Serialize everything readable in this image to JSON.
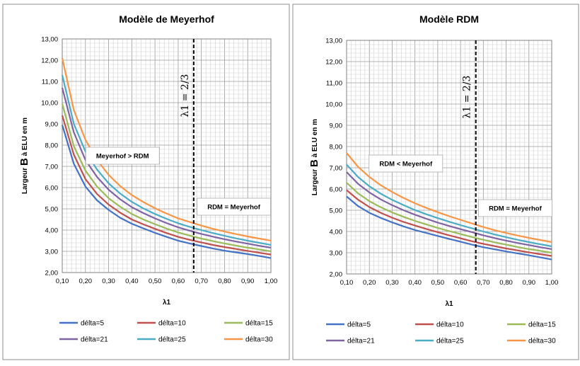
{
  "chart_data": [
    {
      "type": "line",
      "title": "Modèle de Meyerhof",
      "ylabel": "Largeur B à ELU en m",
      "ylabel_prefix": "Largeur ",
      "ylabel_big": "B",
      "ylabel_suffix": " à ELU en m",
      "xlabel": "λ1",
      "x_ticks": [
        "0,10",
        "0,20",
        "0,30",
        "0,40",
        "0,50",
        "0,60",
        "0,70",
        "0,80",
        "0,90",
        "1,00"
      ],
      "y_ticks": [
        "2,00",
        "3,00",
        "4,00",
        "5,00",
        "6,00",
        "7,00",
        "8,00",
        "9,00",
        "10,00",
        "11,00",
        "12,00",
        "13,00"
      ],
      "xlim": [
        0.1,
        1.0
      ],
      "ylim": [
        2,
        13
      ],
      "grid": true,
      "legend_position": "bottom",
      "marker_x": 0.667,
      "marker_label": "λ1 = 2/3",
      "annotations": [
        {
          "text": "Meyerhof > RDM",
          "x": 0.36,
          "y": 7.5
        },
        {
          "text": "RDM = Meyerhof",
          "x": 0.84,
          "y": 5.1
        }
      ],
      "x": [
        0.1,
        0.15,
        0.2,
        0.25,
        0.3,
        0.35,
        0.4,
        0.45,
        0.5,
        0.55,
        0.6,
        0.65,
        0.7,
        0.75,
        0.8,
        0.85,
        0.9,
        0.95,
        1.0
      ],
      "series": [
        {
          "name": "délta=5",
          "color": "#4472c4",
          "values": [
            8.95,
            7.12,
            6.05,
            5.4,
            4.95,
            4.58,
            4.3,
            4.08,
            3.87,
            3.68,
            3.5,
            3.37,
            3.25,
            3.13,
            3.03,
            2.95,
            2.87,
            2.78,
            2.68
          ]
        },
        {
          "name": "délta=10",
          "color": "#c0504d",
          "values": [
            9.4,
            7.55,
            6.4,
            5.7,
            5.2,
            4.82,
            4.5,
            4.27,
            4.06,
            3.86,
            3.68,
            3.54,
            3.42,
            3.3,
            3.2,
            3.11,
            3.02,
            2.93,
            2.85
          ]
        },
        {
          "name": "délta=15",
          "color": "#9bbb59",
          "values": [
            9.95,
            7.95,
            6.8,
            6.05,
            5.5,
            5.1,
            4.76,
            4.5,
            4.28,
            4.07,
            3.89,
            3.74,
            3.6,
            3.48,
            3.37,
            3.27,
            3.17,
            3.09,
            3.0
          ]
        },
        {
          "name": "délta=21",
          "color": "#8064a2",
          "values": [
            10.7,
            8.6,
            7.3,
            6.5,
            5.9,
            5.45,
            5.08,
            4.8,
            4.55,
            4.33,
            4.13,
            3.97,
            3.82,
            3.69,
            3.57,
            3.46,
            3.36,
            3.26,
            3.17
          ]
        },
        {
          "name": "délta=25",
          "color": "#4bacc6",
          "values": [
            11.3,
            9.0,
            7.7,
            6.85,
            6.2,
            5.72,
            5.33,
            5.02,
            4.76,
            4.53,
            4.32,
            4.15,
            4.0,
            3.86,
            3.73,
            3.61,
            3.5,
            3.4,
            3.3
          ]
        },
        {
          "name": "délta=30",
          "color": "#f79646",
          "values": [
            12.1,
            9.65,
            8.25,
            7.3,
            6.6,
            6.07,
            5.65,
            5.32,
            5.03,
            4.78,
            4.55,
            4.38,
            4.21,
            4.06,
            3.93,
            3.81,
            3.7,
            3.6,
            3.5
          ]
        }
      ]
    },
    {
      "type": "line",
      "title": "Modèle RDM",
      "ylabel": "Largeur B à ELU en m",
      "ylabel_prefix": "Largeur ",
      "ylabel_big": "B",
      "ylabel_suffix": " à ELU en m",
      "xlabel": "λ1",
      "x_ticks": [
        "0,10",
        "0,20",
        "0,30",
        "0,40",
        "0,50",
        "0,60",
        "0,70",
        "0,80",
        "0,90",
        "1,00"
      ],
      "y_ticks": [
        "2,00",
        "3,00",
        "4,00",
        "5,00",
        "6,00",
        "7,00",
        "8,00",
        "9,00",
        "10,00",
        "11,00",
        "12,00",
        "13,00"
      ],
      "xlim": [
        0.1,
        1.0
      ],
      "ylim": [
        2,
        13
      ],
      "grid": true,
      "legend_position": "bottom",
      "marker_x": 0.667,
      "marker_label": "λ1 = 2/3",
      "annotations": [
        {
          "text": "RDM < Meyerhof",
          "x": 0.36,
          "y": 7.2
        },
        {
          "text": "RDM = Meyerhof",
          "x": 0.84,
          "y": 5.1
        }
      ],
      "x": [
        0.1,
        0.15,
        0.2,
        0.25,
        0.3,
        0.35,
        0.4,
        0.45,
        0.5,
        0.55,
        0.6,
        0.65,
        0.7,
        0.75,
        0.8,
        0.85,
        0.9,
        0.95,
        1.0
      ],
      "series": [
        {
          "name": "délta=5",
          "color": "#4472c4",
          "values": [
            5.65,
            5.2,
            4.88,
            4.64,
            4.43,
            4.24,
            4.07,
            3.93,
            3.79,
            3.65,
            3.52,
            3.38,
            3.26,
            3.16,
            3.06,
            2.97,
            2.88,
            2.78,
            2.68
          ]
        },
        {
          "name": "délta=10",
          "color": "#c0504d",
          "values": [
            5.95,
            5.5,
            5.15,
            4.88,
            4.65,
            4.45,
            4.28,
            4.12,
            3.97,
            3.82,
            3.68,
            3.54,
            3.42,
            3.31,
            3.2,
            3.11,
            3.02,
            2.93,
            2.85
          ]
        },
        {
          "name": "délta=15",
          "color": "#9bbb59",
          "values": [
            6.3,
            5.8,
            5.43,
            5.14,
            4.9,
            4.69,
            4.5,
            4.33,
            4.17,
            4.02,
            3.88,
            3.74,
            3.61,
            3.49,
            3.38,
            3.27,
            3.17,
            3.09,
            3.0
          ]
        },
        {
          "name": "délta=21",
          "color": "#8064a2",
          "values": [
            6.8,
            6.25,
            5.84,
            5.51,
            5.24,
            5.0,
            4.79,
            4.6,
            4.42,
            4.26,
            4.11,
            3.97,
            3.82,
            3.69,
            3.57,
            3.46,
            3.36,
            3.26,
            3.17
          ]
        },
        {
          "name": "délta=25",
          "color": "#4bacc6",
          "values": [
            7.15,
            6.57,
            6.13,
            5.78,
            5.49,
            5.24,
            5.01,
            4.81,
            4.63,
            4.46,
            4.3,
            4.15,
            4.0,
            3.86,
            3.73,
            3.61,
            3.5,
            3.4,
            3.3
          ]
        },
        {
          "name": "délta=30",
          "color": "#f79646",
          "values": [
            7.7,
            7.05,
            6.57,
            6.18,
            5.86,
            5.58,
            5.33,
            5.11,
            4.91,
            4.72,
            4.55,
            4.38,
            4.21,
            4.06,
            3.93,
            3.81,
            3.7,
            3.6,
            3.5
          ]
        }
      ]
    }
  ]
}
